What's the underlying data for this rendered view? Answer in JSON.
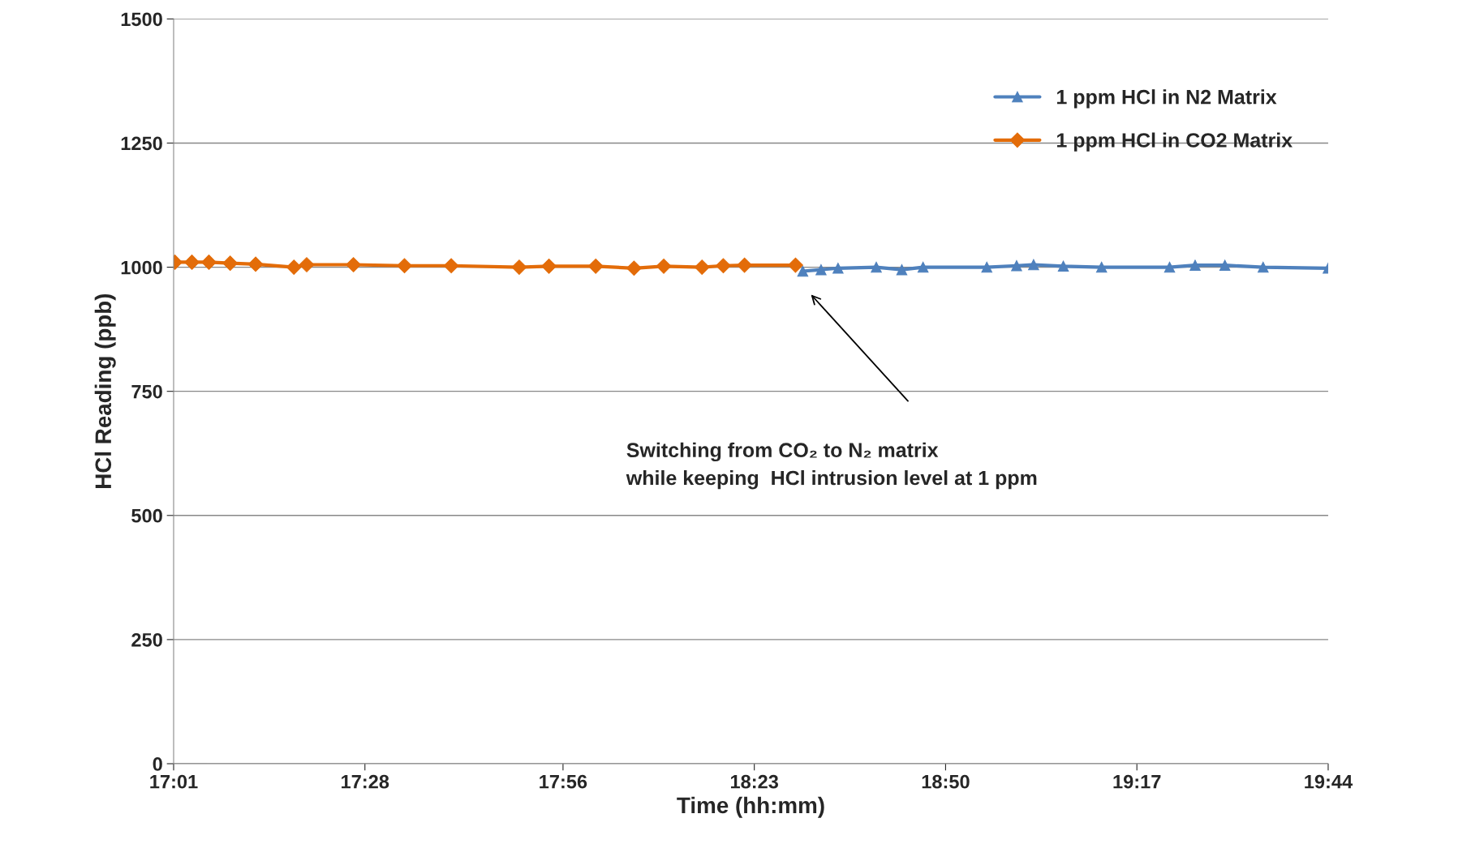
{
  "chart_data": {
    "type": "line",
    "xlabel": "Time (hh:mm)",
    "ylabel": "HCl Reading (ppb)",
    "xlim": [
      17.017,
      19.733
    ],
    "xticks": [
      {
        "value": 17.017,
        "label": "17:01"
      },
      {
        "value": 17.467,
        "label": "17:28"
      },
      {
        "value": 17.933,
        "label": "17:56"
      },
      {
        "value": 18.383,
        "label": "18:23"
      },
      {
        "value": 18.833,
        "label": "18:50"
      },
      {
        "value": 19.283,
        "label": "19:17"
      },
      {
        "value": 19.733,
        "label": "19:44"
      }
    ],
    "ylim": [
      0,
      1500
    ],
    "yticks": [
      0,
      250,
      500,
      750,
      1000,
      1250,
      1500
    ],
    "grid": "y",
    "legend": "top right",
    "line_style": "solid",
    "series": [
      {
        "name": "1 ppm HCl in N2 Matrix",
        "color": "#4f81bd",
        "marker": "triangle",
        "x": [
          18.497,
          18.54,
          18.58,
          18.67,
          18.73,
          18.78,
          18.93,
          19.0,
          19.04,
          19.11,
          19.2,
          19.36,
          19.42,
          19.49,
          19.58,
          19.733
        ],
        "values": [
          992,
          995,
          998,
          1000,
          995,
          1000,
          1000,
          1003,
          1005,
          1002,
          1000,
          1000,
          1004,
          1004,
          1000,
          998
        ]
      },
      {
        "name": "1 ppm HCl in CO2 Matrix",
        "color": "#e36c09",
        "marker": "diamond",
        "x": [
          17.02,
          17.06,
          17.1,
          17.15,
          17.21,
          17.3,
          17.33,
          17.44,
          17.56,
          17.67,
          17.83,
          17.9,
          18.01,
          18.1,
          18.17,
          18.26,
          18.31,
          18.36,
          18.48
        ],
        "values": [
          1010,
          1010,
          1010,
          1008,
          1006,
          1000,
          1005,
          1005,
          1003,
          1003,
          1000,
          1002,
          1002,
          998,
          1002,
          1000,
          1003,
          1004,
          1004
        ]
      }
    ],
    "annotations": [
      "Switching from CO₂ to N₂ matrix\nwhile keeping  HCl intrusion level at 1 ppm"
    ]
  }
}
